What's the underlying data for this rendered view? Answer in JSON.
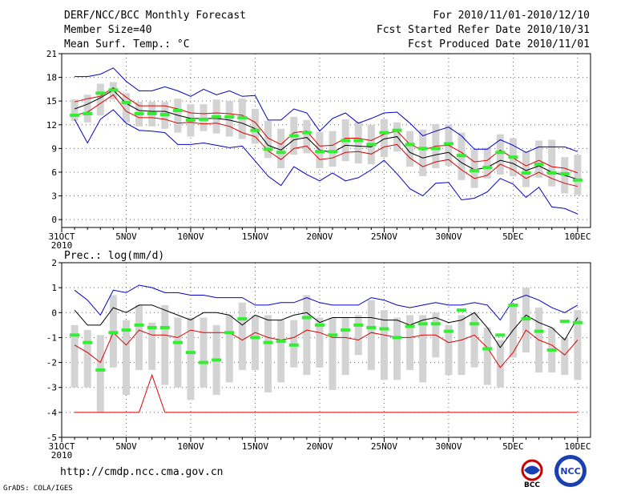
{
  "header": {
    "title": "DERF/NCC/BCC Monthly Forecast",
    "member_size": "Member Size=40",
    "variable": "Mean Surf. Temp.: °C",
    "period": "For 2010/11/01-2010/12/10",
    "fcst_started": "Fcst Started Refer Date 2010/10/31",
    "fcst_produced": "Fcst Produced Date 2010/11/01"
  },
  "footer": {
    "url": "http://cmdp.ncc.cma.gov.cn",
    "credit": "GrADS: COLA/IGES",
    "logo_left": "BCC",
    "logo_right": "NCC"
  },
  "colors": {
    "max": "#0000cc",
    "min": "#0000cc",
    "mean": "#000000",
    "spread": "#dd0000",
    "box": "#d3d3d3",
    "median": "#33ee33"
  },
  "chart_data": [
    {
      "type": "line",
      "title": "Mean Surf. Temp.: °C",
      "xlabel": "",
      "ylabel": "",
      "x_start": "2010-10-31",
      "xticks": [
        "31OCT",
        "5NOV",
        "10NOV",
        "15NOV",
        "20NOV",
        "25NOV",
        "30NOV",
        "5DEC",
        "10DEC"
      ],
      "xtick_days": [
        0,
        5,
        10,
        15,
        20,
        25,
        30,
        35,
        40
      ],
      "xtick_year": "2010",
      "ylim": [
        -1,
        21
      ],
      "yticks": [
        0,
        3,
        6,
        9,
        12,
        15,
        18,
        21
      ],
      "days": [
        1,
        2,
        3,
        4,
        5,
        6,
        7,
        8,
        9,
        10,
        11,
        12,
        13,
        14,
        15,
        16,
        17,
        18,
        19,
        20,
        21,
        22,
        23,
        24,
        25,
        26,
        27,
        28,
        29,
        30,
        31,
        32,
        33,
        34,
        35,
        36,
        37,
        38,
        39,
        40
      ],
      "series": [
        {
          "name": "max",
          "values": [
            18.1,
            18.1,
            18.4,
            19.2,
            17.5,
            16.3,
            16.3,
            16.8,
            16.3,
            15.6,
            16.5,
            15.8,
            16.3,
            15.6,
            15.7,
            12.6,
            12.6,
            14.0,
            13.5,
            11.2,
            12.8,
            13.5,
            12.2,
            12.8,
            13.5,
            13.6,
            12.2,
            10.6,
            11.2,
            11.7,
            10.6,
            8.9,
            8.9,
            10.1,
            9.4,
            8.5,
            9.2,
            9.2,
            9.2,
            8.6
          ]
        },
        {
          "name": "upper",
          "values": [
            14.9,
            15.3,
            15.6,
            16.7,
            15.5,
            14.4,
            14.4,
            14.4,
            14.0,
            13.5,
            13.4,
            13.5,
            13.4,
            13.2,
            12.3,
            10.3,
            9.5,
            11.0,
            11.2,
            9.3,
            9.4,
            10.3,
            10.3,
            10.0,
            10.8,
            11.2,
            9.5,
            8.8,
            9.3,
            9.4,
            8.5,
            7.3,
            7.5,
            8.8,
            7.8,
            6.8,
            7.5,
            6.7,
            6.5,
            5.9
          ]
        },
        {
          "name": "mean",
          "values": [
            14.0,
            14.6,
            15.4,
            16.4,
            14.7,
            13.8,
            13.7,
            13.7,
            13.2,
            12.8,
            12.8,
            12.8,
            12.6,
            12.2,
            11.5,
            9.4,
            8.8,
            10.1,
            10.4,
            8.8,
            8.5,
            9.4,
            9.3,
            9.2,
            10.2,
            10.5,
            8.5,
            7.8,
            8.2,
            8.5,
            7.2,
            6.3,
            6.6,
            7.5,
            7.1,
            6.2,
            6.8,
            6.0,
            5.6,
            5.1
          ]
        },
        {
          "name": "lower",
          "values": [
            13.2,
            13.6,
            14.7,
            15.8,
            13.7,
            12.9,
            12.9,
            12.7,
            12.2,
            12.3,
            12.1,
            12.2,
            11.8,
            11.0,
            10.5,
            8.7,
            7.6,
            9.0,
            9.3,
            7.6,
            7.8,
            8.5,
            8.6,
            8.3,
            9.2,
            9.5,
            7.8,
            6.7,
            7.3,
            7.6,
            6.3,
            5.2,
            5.6,
            7.0,
            6.3,
            5.2,
            6.0,
            5.2,
            4.6,
            4.2
          ]
        },
        {
          "name": "min",
          "values": [
            12.7,
            9.7,
            12.7,
            13.9,
            12.2,
            11.3,
            11.2,
            11.0,
            9.5,
            9.5,
            9.7,
            9.4,
            9.1,
            9.3,
            7.4,
            5.5,
            4.3,
            6.7,
            5.7,
            4.9,
            5.9,
            4.9,
            5.3,
            6.3,
            7.5,
            5.8,
            3.9,
            3.0,
            4.6,
            4.7,
            2.5,
            2.7,
            3.5,
            5.2,
            4.5,
            2.8,
            4.1,
            1.6,
            1.4,
            0.7
          ]
        },
        {
          "name": "median",
          "values": [
            13.2,
            13.4,
            16.0,
            16.4,
            14.8,
            13.4,
            13.4,
            13.3,
            13.8,
            12.6,
            12.7,
            13.0,
            13.0,
            12.9,
            11.3,
            8.9,
            8.5,
            10.6,
            11.0,
            8.6,
            8.6,
            10.0,
            10.0,
            9.5,
            11.0,
            11.3,
            9.5,
            9.0,
            9.0,
            9.6,
            8.1,
            6.2,
            6.6,
            8.5,
            7.9,
            5.9,
            7.0,
            5.9,
            5.8,
            5.0
          ]
        },
        {
          "name": "box_low",
          "values": [
            12.5,
            12.3,
            13.2,
            15.2,
            12.3,
            11.8,
            11.8,
            11.5,
            11.0,
            10.5,
            11.2,
            10.9,
            10.5,
            10.2,
            9.6,
            7.8,
            6.5,
            8.2,
            8.4,
            6.5,
            6.7,
            7.4,
            7.1,
            7.0,
            7.9,
            8.6,
            6.7,
            5.5,
            6.5,
            6.8,
            5.0,
            4.0,
            5.2,
            5.7,
            5.5,
            4.1,
            5.3,
            4.2,
            3.3,
            3.1
          ]
        },
        {
          "name": "box_high",
          "values": [
            15.2,
            15.8,
            17.2,
            17.4,
            16.0,
            14.9,
            14.9,
            14.9,
            15.3,
            14.6,
            14.6,
            15.2,
            15.0,
            15.3,
            14.0,
            12.5,
            11.5,
            13.0,
            12.6,
            11.1,
            11.2,
            12.7,
            12.4,
            12.0,
            12.7,
            12.3,
            11.2,
            11.4,
            12.1,
            12.0,
            11.0,
            8.9,
            9.1,
            10.8,
            10.3,
            8.6,
            10.0,
            10.1,
            7.9,
            8.2
          ]
        }
      ]
    },
    {
      "type": "line",
      "title": "Prec.: log(mm/d)",
      "xlabel": "",
      "ylabel": "",
      "x_start": "2010-10-31",
      "xticks": [
        "31OCT",
        "5NOV",
        "10NOV",
        "15NOV",
        "20NOV",
        "25NOV",
        "30NOV",
        "5DEC",
        "10DEC"
      ],
      "xtick_days": [
        0,
        5,
        10,
        15,
        20,
        25,
        30,
        35,
        40
      ],
      "xtick_year": "2010",
      "ylim": [
        -5,
        2
      ],
      "yticks": [
        -5,
        -4,
        -3,
        -2,
        -1,
        0,
        1,
        2
      ],
      "days": [
        1,
        2,
        3,
        4,
        5,
        6,
        7,
        8,
        9,
        10,
        11,
        12,
        13,
        14,
        15,
        16,
        17,
        18,
        19,
        20,
        21,
        22,
        23,
        24,
        25,
        26,
        27,
        28,
        29,
        30,
        31,
        32,
        33,
        34,
        35,
        36,
        37,
        38,
        39,
        40
      ],
      "series": [
        {
          "name": "max",
          "values": [
            0.9,
            0.5,
            -0.1,
            0.9,
            0.8,
            1.1,
            1.0,
            0.8,
            0.8,
            0.7,
            0.7,
            0.6,
            0.6,
            0.6,
            0.3,
            0.3,
            0.4,
            0.4,
            0.6,
            0.4,
            0.3,
            0.3,
            0.3,
            0.6,
            0.5,
            0.3,
            0.2,
            0.3,
            0.4,
            0.3,
            0.3,
            0.4,
            0.3,
            -0.3,
            0.5,
            0.7,
            0.5,
            0.2,
            0.0,
            0.3
          ]
        },
        {
          "name": "mean",
          "values": [
            0.1,
            -0.5,
            -0.5,
            0.2,
            0.0,
            0.3,
            0.3,
            0.1,
            -0.1,
            -0.3,
            0.0,
            0.0,
            -0.1,
            -0.5,
            -0.1,
            -0.3,
            -0.3,
            -0.1,
            0.0,
            -0.4,
            -0.2,
            -0.2,
            -0.2,
            -0.2,
            -0.3,
            -0.3,
            -0.5,
            -0.3,
            -0.2,
            -0.4,
            -0.3,
            0.0,
            -0.6,
            -1.4,
            -0.7,
            -0.1,
            -0.4,
            -0.6,
            -1.1,
            -0.2
          ]
        },
        {
          "name": "lower",
          "values": [
            -1.3,
            -1.6,
            -2.0,
            -0.8,
            -1.3,
            -0.7,
            -0.9,
            -0.9,
            -1.0,
            -0.7,
            -0.8,
            -0.8,
            -0.8,
            -1.1,
            -0.8,
            -1.0,
            -1.1,
            -1.0,
            -0.7,
            -0.8,
            -1.0,
            -1.0,
            -1.1,
            -0.8,
            -0.9,
            -1.0,
            -1.0,
            -0.9,
            -0.9,
            -1.2,
            -1.1,
            -0.9,
            -1.4,
            -2.2,
            -1.6,
            -0.7,
            -1.1,
            -1.3,
            -1.7,
            -1.1
          ]
        },
        {
          "name": "min",
          "values": [
            -4.0,
            -4.0,
            -4.0,
            -4.0,
            -4.0,
            -4.0,
            -2.5,
            -4.0,
            -4.0,
            -4.0,
            -4.0,
            -4.0,
            -4.0,
            -4.0,
            -4.0,
            -4.0,
            -4.0,
            -4.0,
            -4.0,
            -4.0,
            -4.0,
            -4.0,
            -4.0,
            -4.0,
            -4.0,
            -4.0,
            -4.0,
            -4.0,
            -4.0,
            -4.0,
            -4.0,
            -4.0,
            -4.0,
            -4.0,
            -4.0,
            -4.0,
            -4.0,
            -4.0,
            -4.0,
            -4.0
          ]
        },
        {
          "name": "median",
          "values": [
            -0.9,
            -1.2,
            -2.3,
            -0.8,
            -0.7,
            -0.5,
            -0.6,
            -0.6,
            -1.2,
            -1.6,
            -2.0,
            -1.9,
            -0.8,
            -0.25,
            -1.0,
            -1.2,
            -1.15,
            -1.3,
            -0.2,
            -0.5,
            -0.9,
            -0.7,
            -0.5,
            -0.6,
            -0.65,
            -1.0,
            -0.55,
            -0.45,
            -0.45,
            -0.75,
            0.1,
            -0.45,
            -1.45,
            -0.9,
            0.3,
            -0.25,
            -0.75,
            -1.5,
            -0.35,
            -0.4
          ]
        },
        {
          "name": "box_low",
          "values": [
            -3.0,
            -3.0,
            -4.0,
            -2.2,
            -3.3,
            -2.3,
            -2.3,
            -2.9,
            -3.0,
            -3.5,
            -3.0,
            -3.3,
            -2.8,
            -2.3,
            -2.3,
            -3.2,
            -2.8,
            -2.2,
            -2.5,
            -2.2,
            -3.1,
            -2.5,
            -1.7,
            -2.3,
            -2.7,
            -2.7,
            -2.3,
            -2.8,
            -1.8,
            -2.5,
            -2.5,
            -2.2,
            -2.9,
            -3.0,
            -1.8,
            -1.6,
            -2.4,
            -2.4,
            -2.5,
            -2.7
          ]
        },
        {
          "name": "box_high",
          "values": [
            -0.5,
            -0.7,
            -0.9,
            0.7,
            -0.3,
            0.3,
            -0.4,
            0.3,
            -0.2,
            -0.2,
            -0.2,
            -0.5,
            -0.1,
            0.4,
            -0.1,
            -0.1,
            -0.3,
            -0.3,
            0.7,
            -0.2,
            -0.2,
            -0.2,
            -0.1,
            0.5,
            0.1,
            -0.2,
            -0.1,
            -0.1,
            0.0,
            -0.5,
            -0.1,
            0.0,
            -0.6,
            -1.1,
            0.3,
            1.0,
            0.2,
            -0.6,
            -1.0,
            0.1
          ]
        }
      ]
    }
  ]
}
